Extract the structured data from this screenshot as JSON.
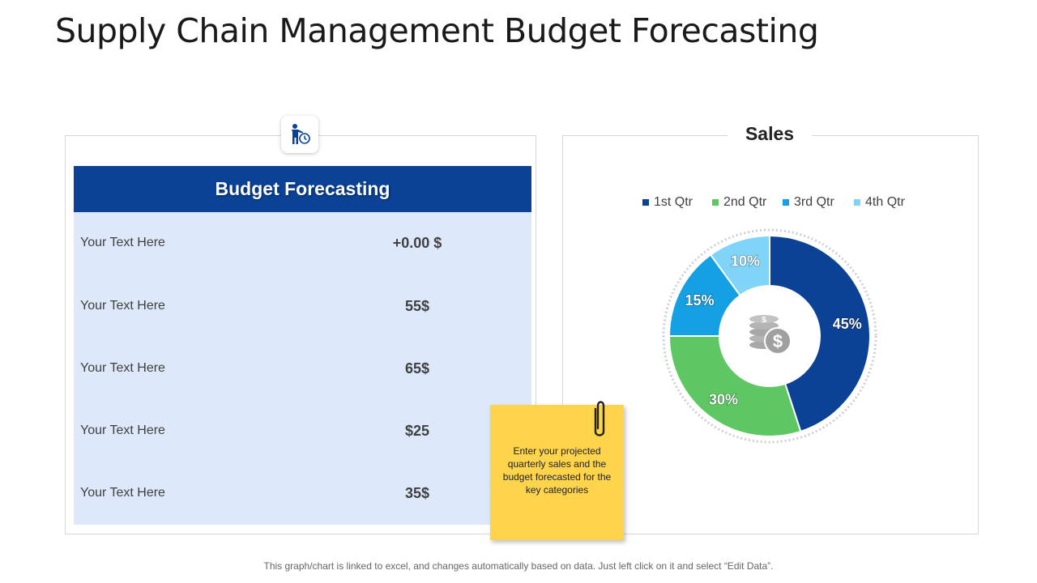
{
  "page": {
    "title": "Supply Chain Management Budget Forecasting",
    "footer": "This graph/chart is linked to excel, and changes automatically based on data. Just left click on it and select “Edit Data”."
  },
  "budget": {
    "header": "Budget Forecasting",
    "icon": "person-clock-icon",
    "rows": [
      {
        "label": "Your Text Here",
        "value": "+0.00 $"
      },
      {
        "label": "Your Text Here",
        "value": "55$"
      },
      {
        "label": "Your Text Here",
        "value": "65$"
      },
      {
        "label": "Your Text Here",
        "value": "$25"
      },
      {
        "label": "Your Text Here",
        "value": "35$"
      }
    ]
  },
  "note": {
    "text": "Enter your projected quarterly sales and the budget forecasted for the key categories",
    "icon": "paperclip-icon"
  },
  "chart_data": {
    "type": "pie",
    "title": "Sales",
    "center_icon": "coins-dollar-icon",
    "categories": [
      "1st Qtr",
      "2nd Qtr",
      "3rd Qtr",
      "4th Qtr"
    ],
    "values": [
      45,
      30,
      15,
      10
    ],
    "labels": [
      "45%",
      "30%",
      "15%",
      "10%"
    ],
    "colors": [
      "#0b4296",
      "#5ec764",
      "#14a0e3",
      "#7fd4f7"
    ],
    "legend_position": "top"
  }
}
